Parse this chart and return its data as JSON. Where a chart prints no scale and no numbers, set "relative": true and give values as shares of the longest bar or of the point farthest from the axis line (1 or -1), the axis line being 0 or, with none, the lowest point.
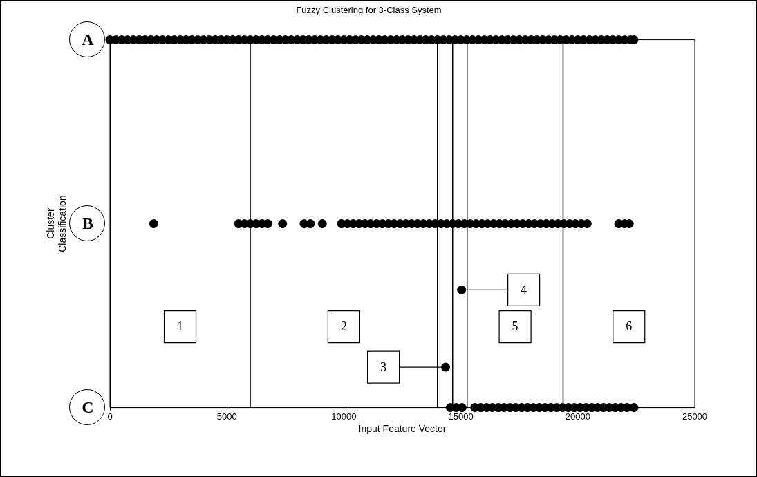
{
  "chart_data": {
    "type": "scatter",
    "title": "Fuzzy Clustering for 3-Class System",
    "xlabel": "Input Feature Vector",
    "ylabel": "Cluster Classification",
    "xlim": [
      0,
      25000
    ],
    "xticks": [
      0,
      5000,
      10000,
      15000,
      20000,
      25000
    ],
    "relative": true,
    "grid": false,
    "legend": false,
    "marker": "circle",
    "series": [
      {
        "color": "#000000",
        "x": [
          0,
          250,
          500,
          750,
          1000,
          1250,
          1500,
          1750,
          2000,
          2250,
          2500,
          2750,
          3000,
          3250,
          3500,
          3750,
          4000,
          4250,
          4500,
          4750,
          5000,
          5250,
          5500,
          5750,
          6000,
          6250,
          6500,
          6750,
          7000,
          7250,
          7500,
          7750,
          8000,
          8250,
          8500,
          8750,
          9000,
          9250,
          9500,
          9750,
          10000,
          10250,
          10500,
          10750,
          11000,
          11250,
          11500,
          11750,
          12000,
          12250,
          12500,
          12750,
          13000,
          13250,
          13500,
          13750,
          14000,
          14250,
          14500,
          14750,
          15000,
          15250,
          15500,
          15750,
          16000,
          16250,
          16500,
          16750,
          17000,
          17250,
          17500,
          17750,
          18000,
          18250,
          18500,
          18750,
          19000,
          19250,
          19500,
          19750,
          20000,
          20250,
          20500,
          20750,
          21000,
          21250,
          21500,
          21750,
          22000,
          22250,
          22400
        ],
        "values": [
          1,
          1,
          1,
          1,
          1,
          1,
          1,
          1,
          1,
          1,
          1,
          1,
          1,
          1,
          1,
          1,
          1,
          1,
          1,
          1,
          1,
          1,
          1,
          1,
          1,
          1,
          1,
          1,
          1,
          1,
          1,
          1,
          1,
          1,
          1,
          1,
          1,
          1,
          1,
          1,
          1,
          1,
          1,
          1,
          1,
          1,
          1,
          1,
          1,
          1,
          1,
          1,
          1,
          1,
          1,
          1,
          1,
          1,
          1,
          1,
          1,
          1,
          1,
          1,
          1,
          1,
          1,
          1,
          1,
          1,
          1,
          1,
          1,
          1,
          1,
          1,
          1,
          1,
          1,
          1,
          1,
          1,
          1,
          1,
          1,
          1,
          1,
          1,
          1,
          1,
          1
        ]
      },
      {
        "color": "#000000",
        "x": [
          1870,
          5500,
          5750,
          6000,
          6250,
          6500,
          6750,
          7380,
          8300,
          8570,
          9080,
          9900,
          10150,
          10400,
          10650,
          10900,
          11150,
          11400,
          11650,
          11900,
          12150,
          12400,
          12650,
          12900,
          13150,
          13400,
          13650,
          13900,
          14150,
          14400,
          14650,
          14900,
          15150,
          15400,
          15650,
          15900,
          16150,
          16400,
          16650,
          16900,
          17150,
          17400,
          17650,
          17900,
          18150,
          18400,
          18650,
          18900,
          19150,
          19400,
          19650,
          19900,
          20150,
          20400,
          21750,
          22000,
          22200
        ],
        "values": [
          0.5,
          0.5,
          0.5,
          0.5,
          0.5,
          0.5,
          0.5,
          0.5,
          0.5,
          0.5,
          0.5,
          0.5,
          0.5,
          0.5,
          0.5,
          0.5,
          0.5,
          0.5,
          0.5,
          0.5,
          0.5,
          0.5,
          0.5,
          0.5,
          0.5,
          0.5,
          0.5,
          0.5,
          0.5,
          0.5,
          0.5,
          0.5,
          0.5,
          0.5,
          0.5,
          0.5,
          0.5,
          0.5,
          0.5,
          0.5,
          0.5,
          0.5,
          0.5,
          0.5,
          0.5,
          0.5,
          0.5,
          0.5,
          0.5,
          0.5,
          0.5,
          0.5,
          0.5,
          0.5,
          0.5,
          0.5,
          0.5
        ]
      },
      {
        "color": "#000000",
        "x": [
          14550,
          14800,
          15050,
          15600,
          15850,
          16100,
          16350,
          16600,
          16850,
          17100,
          17350,
          17600,
          17850,
          18100,
          18350,
          18600,
          18850,
          19100,
          19350,
          19600,
          19850,
          20100,
          20350,
          20600,
          20850,
          21100,
          21350,
          21600,
          21850,
          22100,
          22400
        ],
        "values": [
          0,
          0,
          0,
          0,
          0,
          0,
          0,
          0,
          0,
          0,
          0,
          0,
          0,
          0,
          0,
          0,
          0,
          0,
          0,
          0,
          0,
          0,
          0,
          0,
          0,
          0,
          0,
          0,
          0,
          0,
          0
        ]
      },
      {
        "color": "#000000",
        "x": [
          14350,
          15030
        ],
        "values": [
          0.11,
          0.32
        ]
      }
    ],
    "ref_lines": [
      {
        "axis": "x",
        "value": 6000,
        "color": "#000000"
      },
      {
        "axis": "x",
        "value": 14000,
        "color": "#000000"
      },
      {
        "axis": "x",
        "value": 14650,
        "color": "#000000"
      },
      {
        "axis": "x",
        "value": 15270,
        "color": "#000000"
      },
      {
        "axis": "x",
        "value": 19370,
        "color": "#000000"
      }
    ],
    "annotations": [
      "A",
      "B",
      "C",
      "1",
      "2",
      "3",
      "4",
      "5",
      "6"
    ]
  }
}
